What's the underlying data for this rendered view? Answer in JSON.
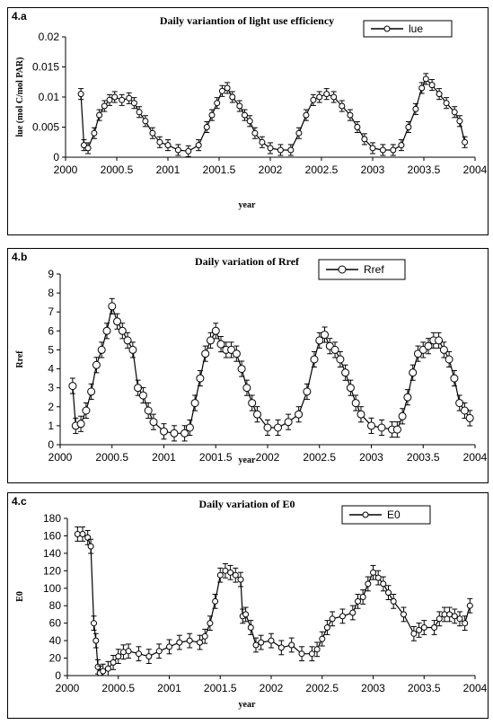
{
  "chart_data": [
    {
      "panel_label": "4.a",
      "type": "line",
      "title": "Daily variantion of light use efficiency",
      "xlabel": "year",
      "ylabel": "lue (mol C/mol PAR)",
      "xlim": [
        2000,
        2004
      ],
      "ylim": [
        0,
        0.02
      ],
      "xticks": [
        "2000",
        "2000.5",
        "2001",
        "2001.5",
        "2002",
        "2002.5",
        "2003",
        "2003.5",
        "2004"
      ],
      "yticks": [
        "0",
        "0.005",
        "0.01",
        "0.015",
        "0.02"
      ],
      "legend": "top-right",
      "series": [
        {
          "name": "lue",
          "marker": "open-circle",
          "error_bars": true,
          "x": [
            2000.15,
            2000.18,
            2000.22,
            2000.28,
            2000.33,
            2000.38,
            2000.43,
            2000.48,
            2000.55,
            2000.62,
            2000.67,
            2000.72,
            2000.78,
            2000.85,
            2000.92,
            2001.0,
            2001.1,
            2001.2,
            2001.3,
            2001.38,
            2001.43,
            2001.48,
            2001.53,
            2001.58,
            2001.63,
            2001.7,
            2001.75,
            2001.8,
            2001.85,
            2001.92,
            2002.0,
            2002.1,
            2002.2,
            2002.28,
            2002.35,
            2002.42,
            2002.48,
            2002.55,
            2002.62,
            2002.7,
            2002.78,
            2002.85,
            2002.92,
            2003.0,
            2003.1,
            2003.2,
            2003.28,
            2003.35,
            2003.42,
            2003.48,
            2003.52,
            2003.58,
            2003.65,
            2003.72,
            2003.8,
            2003.85,
            2003.9
          ],
          "y": [
            0.0105,
            0.002,
            0.0015,
            0.004,
            0.007,
            0.0085,
            0.0095,
            0.01,
            0.0095,
            0.0098,
            0.009,
            0.0075,
            0.006,
            0.004,
            0.0025,
            0.002,
            0.0012,
            0.001,
            0.002,
            0.005,
            0.007,
            0.009,
            0.011,
            0.0115,
            0.01,
            0.0085,
            0.007,
            0.006,
            0.004,
            0.0025,
            0.0015,
            0.0012,
            0.0012,
            0.004,
            0.007,
            0.0095,
            0.01,
            0.0105,
            0.01,
            0.0085,
            0.007,
            0.005,
            0.003,
            0.0015,
            0.0012,
            0.0012,
            0.002,
            0.005,
            0.008,
            0.0115,
            0.013,
            0.012,
            0.0105,
            0.009,
            0.0075,
            0.006,
            0.0025
          ]
        }
      ]
    },
    {
      "panel_label": "4.b",
      "type": "line",
      "title": "Daily variation of Rref",
      "xlabel": "year",
      "ylabel": "Rref",
      "xlim": [
        2000,
        2004
      ],
      "ylim": [
        0,
        9
      ],
      "xticks": [
        "2000",
        "2000.5",
        "2001",
        "2001.5",
        "2002",
        "2002.5",
        "2003",
        "2003.5",
        "2004"
      ],
      "yticks": [
        "0",
        "1",
        "2",
        "3",
        "4",
        "5",
        "6",
        "7",
        "8",
        "9"
      ],
      "legend": "top-right",
      "series": [
        {
          "name": "Rref",
          "marker": "open-circle",
          "error_bars": true,
          "x": [
            2000.12,
            2000.15,
            2000.2,
            2000.25,
            2000.3,
            2000.35,
            2000.4,
            2000.45,
            2000.5,
            2000.55,
            2000.6,
            2000.65,
            2000.7,
            2000.75,
            2000.8,
            2000.85,
            2000.9,
            2001.0,
            2001.1,
            2001.2,
            2001.25,
            2001.3,
            2001.35,
            2001.4,
            2001.45,
            2001.5,
            2001.55,
            2001.6,
            2001.65,
            2001.7,
            2001.75,
            2001.8,
            2001.85,
            2001.9,
            2002.0,
            2002.1,
            2002.2,
            2002.3,
            2002.38,
            2002.45,
            2002.5,
            2002.55,
            2002.6,
            2002.65,
            2002.7,
            2002.75,
            2002.8,
            2002.85,
            2002.9,
            2003.0,
            2003.1,
            2003.2,
            2003.25,
            2003.3,
            2003.35,
            2003.4,
            2003.45,
            2003.5,
            2003.55,
            2003.6,
            2003.65,
            2003.7,
            2003.75,
            2003.8,
            2003.85,
            2003.9,
            2003.95
          ],
          "y": [
            3.1,
            1.0,
            1.1,
            1.8,
            2.8,
            4.2,
            5.0,
            6.0,
            7.3,
            6.5,
            6.0,
            5.5,
            5.0,
            3.0,
            2.6,
            1.8,
            1.2,
            0.7,
            0.6,
            0.6,
            0.9,
            2.2,
            3.5,
            4.8,
            5.5,
            6.0,
            5.3,
            5.0,
            5.0,
            4.8,
            4.0,
            3.0,
            2.2,
            1.6,
            0.9,
            0.9,
            1.2,
            1.6,
            2.8,
            4.5,
            5.5,
            5.8,
            5.2,
            5.0,
            4.5,
            3.8,
            3.0,
            2.2,
            1.6,
            1.0,
            0.9,
            0.8,
            0.8,
            1.5,
            2.5,
            3.8,
            4.8,
            5.0,
            5.2,
            5.5,
            5.5,
            5.0,
            4.5,
            3.5,
            2.2,
            1.8,
            1.4
          ]
        }
      ]
    },
    {
      "panel_label": "4.c",
      "type": "line",
      "title": "Daily variation of E0",
      "xlabel": "year",
      "ylabel": "E0",
      "xlim": [
        2000,
        2004
      ],
      "ylim": [
        0,
        180
      ],
      "xticks": [
        "2000",
        "2000.5",
        "2001",
        "2001.5",
        "2002",
        "2002.5",
        "2003",
        "2003.5",
        "2004"
      ],
      "yticks": [
        "0",
        "20",
        "40",
        "60",
        "80",
        "100",
        "120",
        "140",
        "160",
        "180"
      ],
      "legend": "top-right",
      "series": [
        {
          "name": "E0",
          "marker": "open-circle",
          "error_bars": true,
          "x": [
            2000.1,
            2000.15,
            2000.2,
            2000.23,
            2000.26,
            2000.28,
            2000.3,
            2000.32,
            2000.35,
            2000.4,
            2000.45,
            2000.5,
            2000.55,
            2000.6,
            2000.7,
            2000.8,
            2000.9,
            2001.0,
            2001.1,
            2001.2,
            2001.3,
            2001.35,
            2001.4,
            2001.45,
            2001.5,
            2001.55,
            2001.6,
            2001.65,
            2001.7,
            2001.72,
            2001.75,
            2001.8,
            2001.85,
            2001.9,
            2002.0,
            2002.1,
            2002.2,
            2002.3,
            2002.4,
            2002.45,
            2002.5,
            2002.55,
            2002.6,
            2002.7,
            2002.8,
            2002.85,
            2002.9,
            2002.95,
            2003.0,
            2003.05,
            2003.1,
            2003.15,
            2003.2,
            2003.3,
            2003.4,
            2003.45,
            2003.5,
            2003.6,
            2003.65,
            2003.7,
            2003.75,
            2003.8,
            2003.85,
            2003.9,
            2003.95
          ],
          "y": [
            162,
            162,
            158,
            148,
            60,
            40,
            10,
            3,
            5,
            8,
            15,
            22,
            27,
            28,
            25,
            22,
            28,
            33,
            38,
            40,
            38,
            45,
            60,
            85,
            115,
            120,
            118,
            115,
            110,
            68,
            70,
            55,
            35,
            38,
            40,
            32,
            35,
            25,
            25,
            30,
            42,
            55,
            65,
            68,
            72,
            85,
            90,
            105,
            118,
            112,
            105,
            95,
            85,
            70,
            48,
            52,
            55,
            55,
            65,
            70,
            70,
            68,
            65,
            60,
            80
          ]
        }
      ]
    }
  ]
}
